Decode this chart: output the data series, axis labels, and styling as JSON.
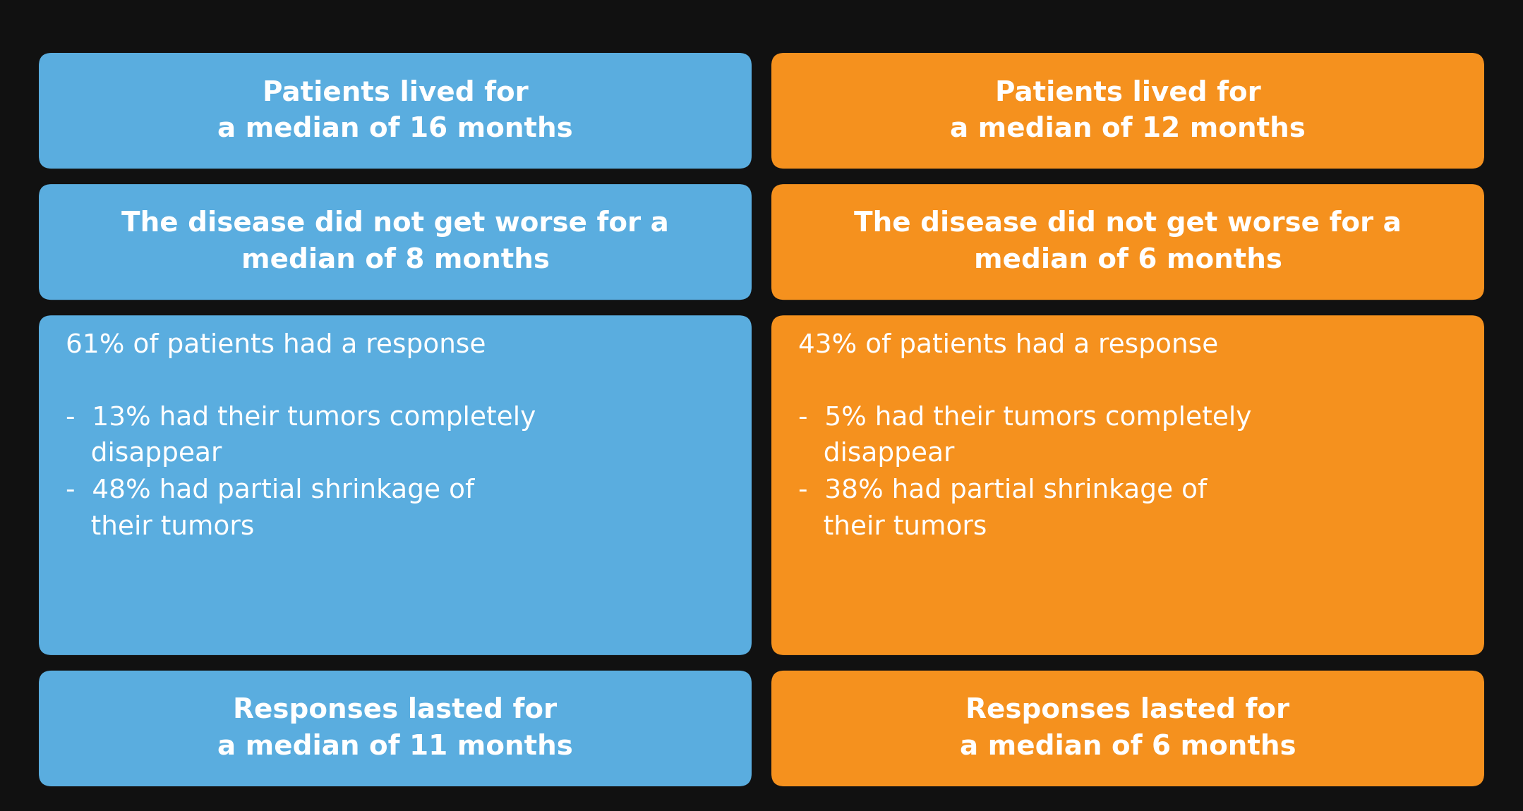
{
  "background_color": "#111111",
  "blue_color": "#5aaddf",
  "orange_color": "#f5911e",
  "text_color": "#ffffff",
  "boxes": [
    {
      "col": 0,
      "row": 0,
      "color": "blue",
      "text": "Patients lived for\na median of 16 months",
      "bold": true,
      "align": "center",
      "fontsize": 28
    },
    {
      "col": 1,
      "row": 0,
      "color": "orange",
      "text": "Patients lived for\na median of 12 months",
      "bold": true,
      "align": "center",
      "fontsize": 28
    },
    {
      "col": 0,
      "row": 1,
      "color": "blue",
      "text": "The disease did not get worse for a\nmedian of 8 months",
      "bold": true,
      "align": "center",
      "fontsize": 28
    },
    {
      "col": 1,
      "row": 1,
      "color": "orange",
      "text": "The disease did not get worse for a\nmedian of 6 months",
      "bold": true,
      "align": "center",
      "fontsize": 28
    },
    {
      "col": 0,
      "row": 2,
      "color": "blue",
      "text": "61% of patients had a response\n\n-  13% had their tumors completely\n   disappear\n-  48% had partial shrinkage of\n   their tumors",
      "bold": false,
      "align": "left",
      "fontsize": 27
    },
    {
      "col": 1,
      "row": 2,
      "color": "orange",
      "text": "43% of patients had a response\n\n-  5% had their tumors completely\n   disappear\n-  38% had partial shrinkage of\n   their tumors",
      "bold": false,
      "align": "left",
      "fontsize": 27
    },
    {
      "col": 0,
      "row": 3,
      "color": "blue",
      "text": "Responses lasted for\na median of 11 months",
      "bold": true,
      "align": "center",
      "fontsize": 28
    },
    {
      "col": 1,
      "row": 3,
      "color": "orange",
      "text": "Responses lasted for\na median of 6 months",
      "bold": true,
      "align": "center",
      "fontsize": 28
    }
  ]
}
